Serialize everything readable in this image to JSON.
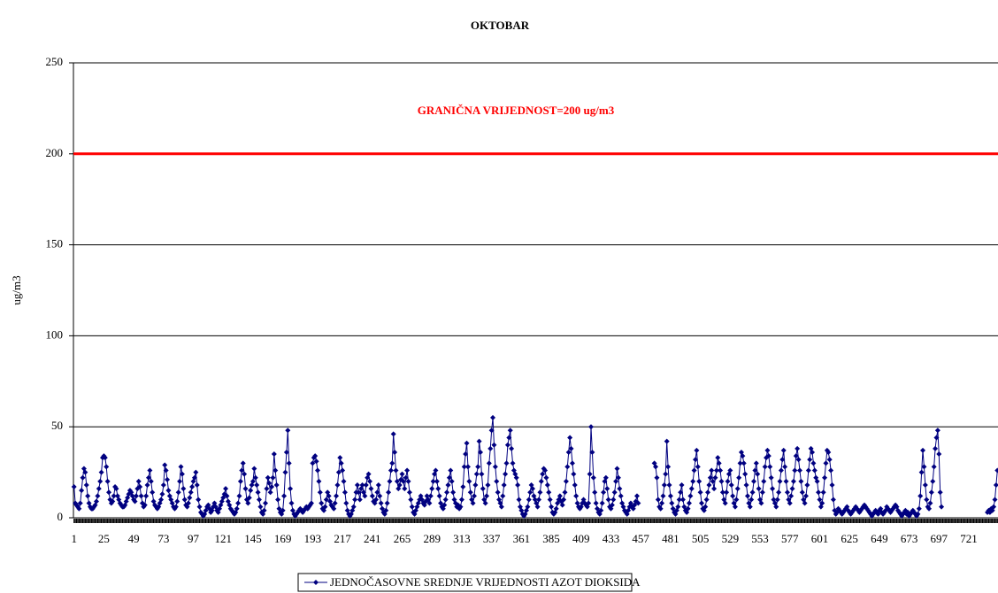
{
  "chart_data": {
    "type": "line",
    "title": "OKTOBAR",
    "y_label": "ug/m3",
    "ylim": [
      0,
      250
    ],
    "yticks": [
      0,
      50,
      100,
      150,
      200,
      250
    ],
    "grid": true,
    "legend": "bottom",
    "limit": {
      "value": 200,
      "label": "GRANIČNA VRIJEDNOST=200 ug/m3",
      "color": "#ff0000"
    },
    "categories": [
      "1",
      null,
      null,
      null,
      null,
      null,
      null,
      null,
      null,
      null,
      null,
      null,
      null,
      null,
      null,
      null,
      null,
      null,
      null,
      null,
      null,
      null,
      null,
      null,
      "25",
      null,
      null,
      null,
      null,
      null,
      null,
      null,
      null,
      null,
      null,
      null,
      null,
      null,
      null,
      null,
      null,
      null,
      null,
      null,
      null,
      null,
      null,
      null,
      "49",
      null,
      null,
      null,
      null,
      null,
      null,
      null,
      null,
      null,
      null,
      null,
      null,
      null,
      null,
      null,
      null,
      null,
      null,
      null,
      null,
      null,
      null,
      null,
      "73",
      null,
      null,
      null,
      null,
      null,
      null,
      null,
      null,
      null,
      null,
      null,
      null,
      null,
      null,
      null,
      null,
      null,
      null,
      null,
      null,
      null,
      null,
      null,
      "97",
      null,
      null,
      null,
      null,
      null,
      null,
      null,
      null,
      null,
      null,
      null,
      null,
      null,
      null,
      null,
      null,
      null,
      null,
      null,
      null,
      null,
      null,
      null,
      "121",
      null,
      null,
      null,
      null,
      null,
      null,
      null,
      null,
      null,
      null,
      null,
      null,
      null,
      null,
      null,
      null,
      null,
      null,
      null,
      null,
      null,
      null,
      null,
      "145",
      null,
      null,
      null,
      null,
      null,
      null,
      null,
      null,
      null,
      null,
      null,
      null,
      null,
      null,
      null,
      null,
      null,
      null,
      null,
      null,
      null,
      null,
      null,
      "169",
      null,
      null,
      null,
      null,
      null,
      null,
      null,
      null,
      null,
      null,
      null,
      null,
      null,
      null,
      null,
      null,
      null,
      null,
      null,
      null,
      null,
      null,
      null,
      "193",
      null,
      null,
      null,
      null,
      null,
      null,
      null,
      null,
      null,
      null,
      null,
      null,
      null,
      null,
      null,
      null,
      null,
      null,
      null,
      null,
      null,
      null,
      null,
      "217",
      null,
      null,
      null,
      null,
      null,
      null,
      null,
      null,
      null,
      null,
      null,
      null,
      null,
      null,
      null,
      null,
      null,
      null,
      null,
      null,
      null,
      null,
      null,
      "241",
      null,
      null,
      null,
      null,
      null,
      null,
      null,
      null,
      null,
      null,
      null,
      null,
      null,
      null,
      null,
      null,
      null,
      null,
      null,
      null,
      null,
      null,
      null,
      "265",
      null,
      null,
      null,
      null,
      null,
      null,
      null,
      null,
      null,
      null,
      null,
      null,
      null,
      null,
      null,
      null,
      null,
      null,
      null,
      null,
      null,
      null,
      null,
      "289",
      null,
      null,
      null,
      null,
      null,
      null,
      null,
      null,
      null,
      null,
      null,
      null,
      null,
      null,
      null,
      null,
      null,
      null,
      null,
      null,
      null,
      null,
      null,
      "313",
      null,
      null,
      null,
      null,
      null,
      null,
      null,
      null,
      null,
      null,
      null,
      null,
      null,
      null,
      null,
      null,
      null,
      null,
      null,
      null,
      null,
      null,
      null,
      "337",
      null,
      null,
      null,
      null,
      null,
      null,
      null,
      null,
      null,
      null,
      null,
      null,
      null,
      null,
      null,
      null,
      null,
      null,
      null,
      null,
      null,
      null,
      null,
      "361",
      null,
      null,
      null,
      null,
      null,
      null,
      null,
      null,
      null,
      null,
      null,
      null,
      null,
      null,
      null,
      null,
      null,
      null,
      null,
      null,
      null,
      null,
      null,
      "385",
      null,
      null,
      null,
      null,
      null,
      null,
      null,
      null,
      null,
      null,
      null,
      null,
      null,
      null,
      null,
      null,
      null,
      null,
      null,
      null,
      null,
      null,
      null,
      "409",
      null,
      null,
      null,
      null,
      null,
      null,
      null,
      null,
      null,
      null,
      null,
      null,
      null,
      null,
      null,
      null,
      null,
      null,
      null,
      null,
      null,
      null,
      null,
      "433",
      null,
      null,
      null,
      null,
      null,
      null,
      null,
      null,
      null,
      null,
      null,
      null,
      null,
      null,
      null,
      null,
      null,
      null,
      null,
      null,
      null,
      null,
      null,
      "457",
      null,
      null,
      null,
      null,
      null,
      null,
      null,
      null,
      null,
      null,
      null,
      null,
      null,
      null,
      null,
      null,
      null,
      null,
      null,
      null,
      null,
      null,
      null,
      "481",
      null,
      null,
      null,
      null,
      null,
      null,
      null,
      null,
      null,
      null,
      null,
      null,
      null,
      null,
      null,
      null,
      null,
      null,
      null,
      null,
      null,
      null,
      null,
      "505",
      null,
      null,
      null,
      null,
      null,
      null,
      null,
      null,
      null,
      null,
      null,
      null,
      null,
      null,
      null,
      null,
      null,
      null,
      null,
      null,
      null,
      null,
      null,
      "529",
      null,
      null,
      null,
      null,
      null,
      null,
      null,
      null,
      null,
      null,
      null,
      null,
      null,
      null,
      null,
      null,
      null,
      null,
      null,
      null,
      null,
      null,
      null,
      "553",
      null,
      null,
      null,
      null,
      null,
      null,
      null,
      null,
      null,
      null,
      null,
      null,
      null,
      null,
      null,
      null,
      null,
      null,
      null,
      null,
      null,
      null,
      null,
      "577",
      null,
      null,
      null,
      null,
      null,
      null,
      null,
      null,
      null,
      null,
      null,
      null,
      null,
      null,
      null,
      null,
      null,
      null,
      null,
      null,
      null,
      null,
      null,
      "601",
      null,
      null,
      null,
      null,
      null,
      null,
      null,
      null,
      null,
      null,
      null,
      null,
      null,
      null,
      null,
      null,
      null,
      null,
      null,
      null,
      null,
      null,
      null,
      "625",
      null,
      null,
      null,
      null,
      null,
      null,
      null,
      null,
      null,
      null,
      null,
      null,
      null,
      null,
      null,
      null,
      null,
      null,
      null,
      null,
      null,
      null,
      null,
      "649",
      null,
      null,
      null,
      null,
      null,
      null,
      null,
      null,
      null,
      null,
      null,
      null,
      null,
      null,
      null,
      null,
      null,
      null,
      null,
      null,
      null,
      null,
      null,
      "673",
      null,
      null,
      null,
      null,
      null,
      null,
      null,
      null,
      null,
      null,
      null,
      null,
      null,
      null,
      null,
      null,
      null,
      null,
      null,
      null,
      null,
      null,
      null,
      "697",
      null,
      null,
      null,
      null,
      null,
      null,
      null,
      null,
      null,
      null,
      null,
      null,
      null,
      null,
      null,
      null,
      null,
      null,
      null,
      null,
      null,
      null,
      null,
      "721",
      null,
      null,
      null,
      null,
      null,
      null,
      null,
      null,
      null,
      null,
      null,
      null,
      null,
      null,
      null,
      null,
      null,
      null,
      null,
      null,
      null,
      null,
      null
    ],
    "series": [
      {
        "name": "JEDNOČASOVNE SREDNJE VRIJEDNOSTI AZOT DIOKSIDA",
        "color": "#000080",
        "values": [
          17,
          8,
          7,
          6,
          5,
          8,
          15,
          22,
          27,
          25,
          18,
          12,
          8,
          6,
          5,
          5,
          6,
          7,
          9,
          12,
          16,
          20,
          25,
          33,
          34,
          33,
          28,
          20,
          14,
          10,
          8,
          9,
          12,
          17,
          16,
          12,
          10,
          8,
          7,
          6,
          6,
          7,
          9,
          11,
          13,
          15,
          14,
          12,
          10,
          9,
          12,
          16,
          20,
          17,
          12,
          8,
          6,
          7,
          12,
          18,
          22,
          26,
          20,
          14,
          9,
          7,
          6,
          5,
          6,
          8,
          10,
          13,
          18,
          29,
          26,
          21,
          15,
          12,
          10,
          8,
          6,
          5,
          6,
          9,
          14,
          20,
          28,
          24,
          16,
          10,
          7,
          6,
          8,
          11,
          14,
          17,
          20,
          22,
          25,
          18,
          10,
          6,
          3,
          2,
          1,
          2,
          4,
          6,
          7,
          5,
          3,
          4,
          6,
          8,
          6,
          4,
          3,
          5,
          7,
          9,
          11,
          13,
          16,
          12,
          9,
          7,
          5,
          4,
          3,
          2,
          3,
          5,
          8,
          12,
          20,
          26,
          30,
          24,
          16,
          10,
          8,
          11,
          15,
          18,
          20,
          27,
          22,
          18,
          14,
          10,
          6,
          3,
          2,
          4,
          8,
          16,
          22,
          19,
          14,
          17,
          22,
          35,
          26,
          18,
          10,
          5,
          3,
          2,
          4,
          12,
          25,
          36,
          48,
          30,
          16,
          8,
          4,
          2,
          1,
          2,
          3,
          4,
          5,
          4,
          3,
          4,
          5,
          6,
          5,
          6,
          7,
          8,
          30,
          33,
          34,
          31,
          26,
          20,
          14,
          8,
          5,
          4,
          6,
          10,
          14,
          12,
          9,
          7,
          6,
          5,
          8,
          12,
          18,
          25,
          33,
          30,
          26,
          20,
          14,
          8,
          4,
          2,
          1,
          2,
          4,
          6,
          10,
          14,
          18,
          14,
          10,
          16,
          18,
          14,
          12,
          18,
          22,
          24,
          20,
          16,
          12,
          9,
          8,
          10,
          14,
          18,
          12,
          8,
          5,
          3,
          2,
          4,
          8,
          14,
          20,
          26,
          30,
          46,
          36,
          26,
          20,
          16,
          18,
          21,
          24,
          20,
          16,
          22,
          26,
          20,
          14,
          10,
          6,
          3,
          2,
          4,
          6,
          8,
          10,
          12,
          10,
          8,
          7,
          9,
          12,
          10,
          8,
          12,
          16,
          20,
          24,
          26,
          20,
          16,
          12,
          8,
          6,
          5,
          7,
          10,
          14,
          18,
          22,
          26,
          20,
          14,
          10,
          8,
          6,
          7,
          5,
          6,
          10,
          17,
          28,
          35,
          41,
          28,
          20,
          14,
          10,
          8,
          12,
          18,
          24,
          28,
          42,
          36,
          24,
          16,
          10,
          8,
          12,
          18,
          30,
          38,
          48,
          55,
          40,
          28,
          20,
          14,
          10,
          8,
          6,
          12,
          18,
          24,
          30,
          40,
          44,
          48,
          38,
          30,
          26,
          24,
          22,
          18,
          10,
          6,
          4,
          2,
          1,
          2,
          4,
          6,
          10,
          14,
          18,
          16,
          12,
          10,
          8,
          6,
          10,
          14,
          20,
          24,
          27,
          26,
          22,
          18,
          14,
          10,
          6,
          3,
          2,
          3,
          5,
          8,
          10,
          12,
          9,
          7,
          10,
          14,
          20,
          28,
          36,
          44,
          38,
          30,
          24,
          18,
          12,
          8,
          6,
          5,
          6,
          8,
          10,
          8,
          7,
          6,
          8,
          24,
          50,
          36,
          22,
          14,
          8,
          5,
          3,
          2,
          4,
          8,
          14,
          20,
          22,
          16,
          10,
          6,
          5,
          7,
          10,
          14,
          20,
          27,
          22,
          16,
          12,
          8,
          6,
          4,
          3,
          2,
          4,
          6,
          8,
          6,
          5,
          7,
          9,
          12,
          8,
          null,
          null,
          null,
          null,
          null,
          null,
          null,
          null,
          null,
          null,
          null,
          null,
          30,
          28,
          22,
          10,
          6,
          5,
          8,
          12,
          18,
          24,
          42,
          28,
          18,
          12,
          8,
          5,
          3,
          2,
          4,
          6,
          10,
          14,
          18,
          10,
          6,
          4,
          3,
          5,
          8,
          12,
          16,
          20,
          26,
          32,
          37,
          28,
          20,
          14,
          8,
          5,
          4,
          6,
          10,
          14,
          18,
          22,
          26,
          20,
          16,
          22,
          26,
          33,
          30,
          26,
          20,
          14,
          10,
          8,
          14,
          20,
          24,
          26,
          18,
          12,
          8,
          6,
          10,
          16,
          22,
          30,
          36,
          34,
          30,
          24,
          18,
          12,
          8,
          6,
          10,
          14,
          20,
          26,
          30,
          24,
          16,
          10,
          8,
          14,
          20,
          28,
          33,
          37,
          34,
          28,
          22,
          16,
          10,
          8,
          6,
          10,
          14,
          20,
          26,
          32,
          37,
          28,
          20,
          14,
          10,
          8,
          12,
          16,
          20,
          26,
          34,
          38,
          32,
          26,
          20,
          14,
          10,
          8,
          12,
          18,
          26,
          32,
          38,
          36,
          30,
          26,
          22,
          20,
          14,
          10,
          6,
          8,
          14,
          22,
          30,
          37,
          36,
          32,
          26,
          18,
          10,
          4,
          2,
          3,
          5,
          4,
          3,
          2,
          3,
          4,
          5,
          6,
          4,
          3,
          2,
          3,
          4,
          5,
          6,
          5,
          4,
          3,
          4,
          5,
          6,
          7,
          6,
          5,
          4,
          3,
          2,
          1,
          2,
          3,
          4,
          3,
          2,
          4,
          5,
          3,
          2,
          3,
          4,
          6,
          5,
          4,
          3,
          4,
          5,
          6,
          7,
          6,
          4,
          3,
          2,
          1,
          2,
          3,
          4,
          2,
          3,
          1,
          2,
          3,
          4,
          3,
          2,
          1,
          2,
          5,
          12,
          25,
          37,
          28,
          18,
          10,
          6,
          5,
          8,
          14,
          20,
          28,
          38,
          44,
          48,
          35,
          14,
          6,
          null,
          null,
          null,
          null,
          null,
          null,
          null,
          null,
          null,
          null,
          null,
          null,
          null,
          null,
          null,
          null,
          null,
          null,
          null,
          null,
          null,
          null,
          null,
          null,
          null,
          null,
          null,
          null,
          null,
          null,
          null,
          null,
          null,
          null,
          null,
          null,
          3,
          4,
          3,
          5,
          4,
          6,
          10,
          18,
          26
        ]
      }
    ]
  }
}
